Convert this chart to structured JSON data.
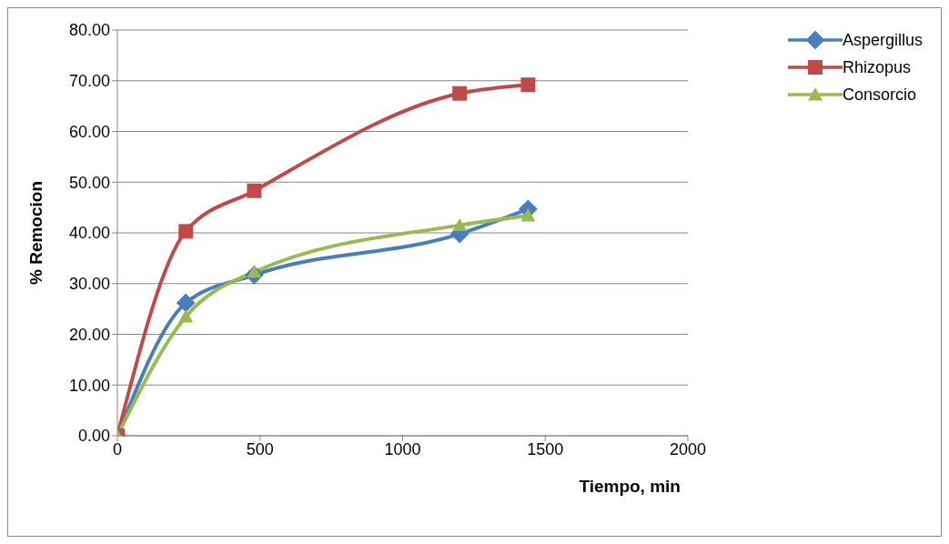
{
  "chart_data": {
    "type": "line",
    "xlabel": "Tiempo, min",
    "ylabel": "% Remocion",
    "x": [
      0,
      240,
      480,
      1200,
      1440
    ],
    "series": [
      {
        "name": "Aspergillus",
        "color": "#4a7ebb",
        "marker": "diamond",
        "values": [
          0,
          26.2,
          31.7,
          39.8,
          44.7
        ]
      },
      {
        "name": "Rhizopus",
        "color": "#be4b48",
        "marker": "square",
        "values": [
          0,
          40.3,
          48.3,
          67.5,
          69.2
        ]
      },
      {
        "name": "Consorcio",
        "color": "#98b954",
        "marker": "triangle",
        "values": [
          0,
          23.5,
          32.3,
          41.5,
          43.4
        ]
      }
    ],
    "xlim": [
      0,
      2000
    ],
    "xticks": [
      0,
      500,
      1000,
      1500,
      2000
    ],
    "ylim": [
      0,
      80
    ],
    "yticks": [
      {
        "value": 0,
        "label": "0.00"
      },
      {
        "value": 10,
        "label": "10.00"
      },
      {
        "value": 20,
        "label": "20.00"
      },
      {
        "value": 30,
        "label": "30.00"
      },
      {
        "value": 40,
        "label": "40.00"
      },
      {
        "value": 50,
        "label": "50.00"
      },
      {
        "value": 60,
        "label": "60.00"
      },
      {
        "value": 70,
        "label": "70.00"
      },
      {
        "value": 80,
        "label": "80.00"
      }
    ],
    "grid": "y",
    "legend": "top right",
    "line_style": "solid"
  }
}
